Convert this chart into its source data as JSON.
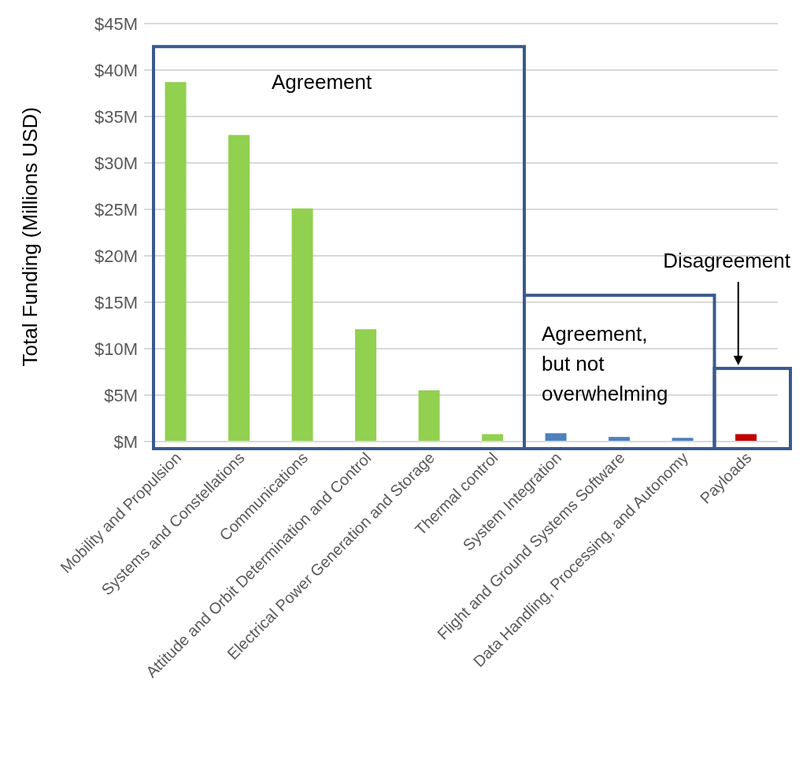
{
  "chart_data": {
    "type": "bar",
    "ylabel": "Total Funding (Millions USD)",
    "categories": [
      "Mobility and Propulsion",
      "Systems and Constellations",
      "Communications",
      "Attitude and Orbit Determination and Control",
      "Electrical Power Generation and Storage",
      "Thermal control",
      "System Integration",
      "Flight and Ground Systems Software",
      "Data Handling, Processing, and Autonomy",
      "Payloads"
    ],
    "values": [
      38.7,
      33.0,
      25.1,
      12.1,
      5.5,
      0.8,
      0.9,
      0.5,
      0.4,
      0.8
    ],
    "colors": [
      "#92d050",
      "#92d050",
      "#92d050",
      "#92d050",
      "#92d050",
      "#92d050",
      "#4f81bd",
      "#4f81bd",
      "#4f81bd",
      "#c00000"
    ],
    "ylim": [
      0,
      45
    ],
    "yticks": [
      {
        "value": 0,
        "label": "$M"
      },
      {
        "value": 5,
        "label": "$5M"
      },
      {
        "value": 10,
        "label": "$10M"
      },
      {
        "value": 15,
        "label": "$15M"
      },
      {
        "value": 20,
        "label": "$20M"
      },
      {
        "value": 25,
        "label": "$25M"
      },
      {
        "value": 30,
        "label": "$30M"
      },
      {
        "value": 35,
        "label": "$35M"
      },
      {
        "value": 40,
        "label": "$40M"
      },
      {
        "value": 45,
        "label": "$45M"
      }
    ],
    "grid": "y",
    "annotations": [
      "Agreement",
      "Agreement, but not overwhelming",
      "Disagreement"
    ]
  }
}
